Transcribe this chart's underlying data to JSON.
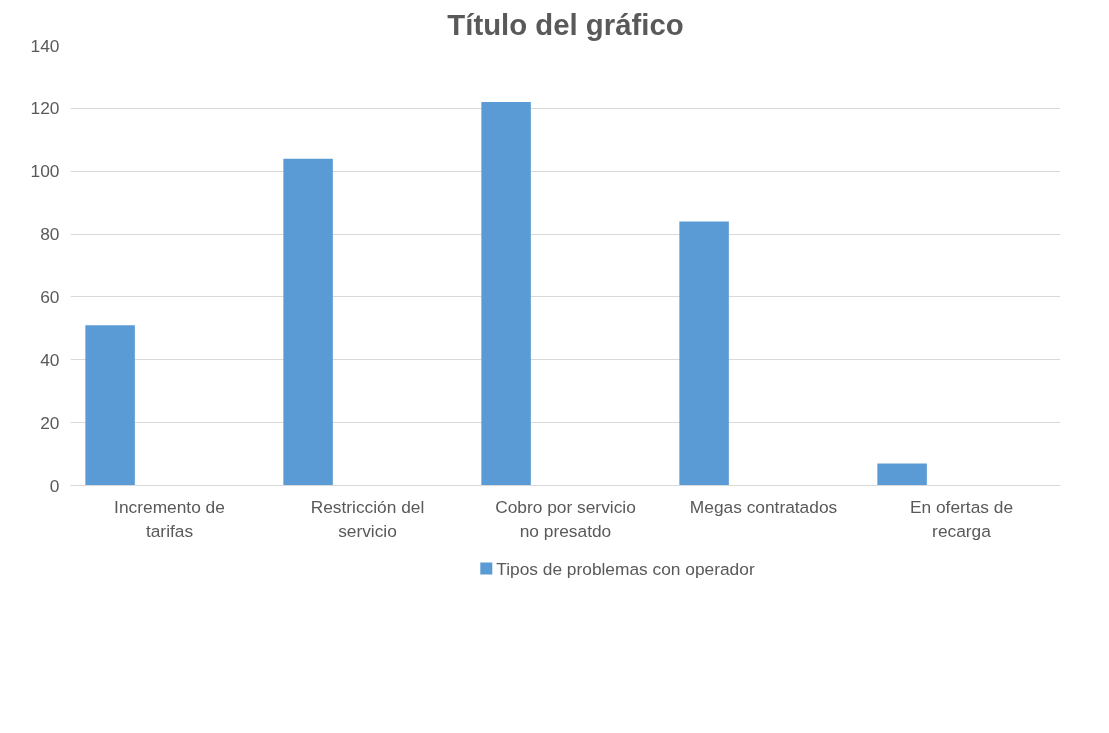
{
  "chart_data": {
    "type": "bar",
    "title": "Título del gráfico",
    "categories": [
      "Incremento de tarifas",
      "Restricción del servicio",
      "Cobro por servicio no presatdo",
      "Megas contratados",
      "En ofertas de recarga"
    ],
    "series": [
      {
        "name": "Tipos de problemas con operador",
        "color": "#5b9bd5",
        "values": [
          51,
          104,
          122,
          84,
          7
        ]
      }
    ],
    "ylim": [
      0,
      140
    ],
    "yticks": [
      0,
      20,
      40,
      60,
      80,
      100,
      120,
      140
    ],
    "grid": "y",
    "legend": "bottom"
  }
}
